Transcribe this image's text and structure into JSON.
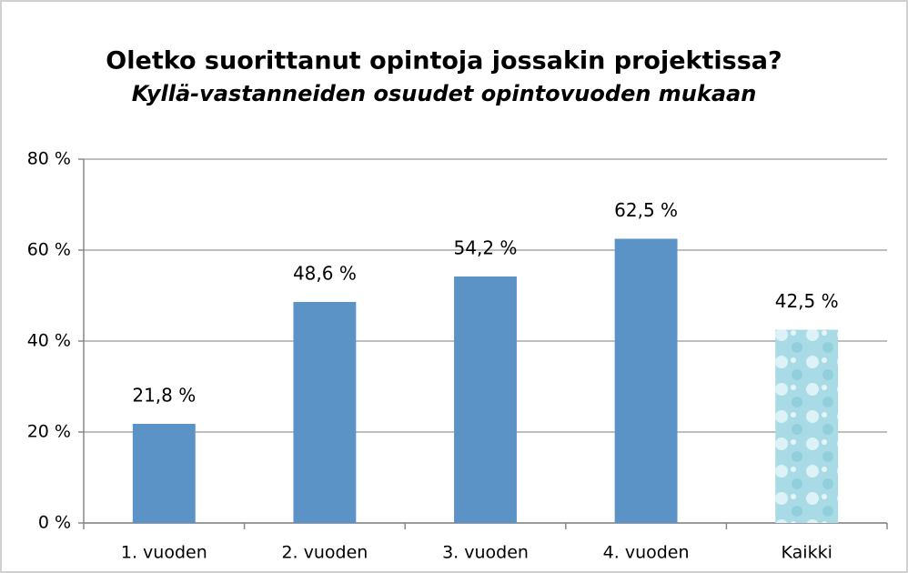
{
  "chart_data": {
    "type": "bar",
    "title": "Oletko suorittanut opintoja jossakin projektissa?",
    "subtitle": "Kyllä-vastanneiden osuudet opintovuoden mukaan",
    "categories": [
      "1. vuoden",
      "2. vuoden",
      "3. vuoden",
      "4. vuoden",
      "Kaikki"
    ],
    "values": [
      21.8,
      48.6,
      54.2,
      62.5,
      42.5
    ],
    "value_labels": [
      "21,8 %",
      "48,6 %",
      "54,2 %",
      "62,5 %",
      "42,5 %"
    ],
    "colors": [
      "#5b93c6",
      "#5b93c6",
      "#5b93c6",
      "#5b93c6",
      "#a8dbe6"
    ],
    "ylim": [
      0,
      80
    ],
    "yticks": [
      {
        "value": 0,
        "label": "0 %"
      },
      {
        "value": 20,
        "label": "20 %"
      },
      {
        "value": 40,
        "label": "40 %"
      },
      {
        "value": 60,
        "label": "60 %"
      },
      {
        "value": 80,
        "label": "80 %"
      }
    ],
    "grid": true
  }
}
